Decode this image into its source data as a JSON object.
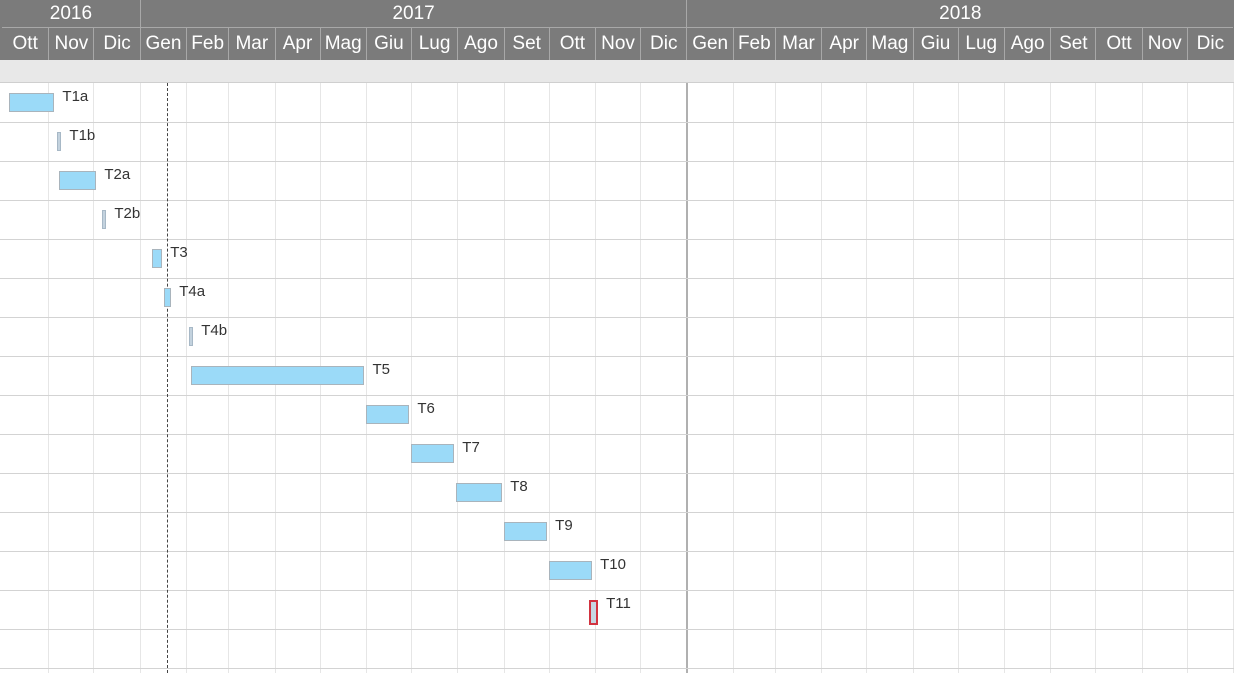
{
  "header": {
    "years": [
      "2016",
      "2017",
      "2018"
    ],
    "months": [
      "Ott",
      "Nov",
      "Dic",
      "Gen",
      "Feb",
      "Mar",
      "Apr",
      "Mag",
      "Giu",
      "Lug",
      "Ago",
      "Set",
      "Ott",
      "Nov",
      "Dic",
      "Gen",
      "Feb",
      "Mar",
      "Apr",
      "Mag",
      "Giu",
      "Lug",
      "Ago",
      "Set",
      "Ott",
      "Nov",
      "Dic"
    ]
  },
  "tasks": [
    {
      "label": "T1a",
      "start": "2016-10-06",
      "end": "2016-11-05",
      "kind": "bar"
    },
    {
      "label": "T1b",
      "start": "2016-11-07",
      "end": "2016-11-09",
      "kind": "milestone"
    },
    {
      "label": "T2a",
      "start": "2016-11-08",
      "end": "2016-12-03",
      "kind": "bar"
    },
    {
      "label": "T2b",
      "start": "2016-12-07",
      "end": "2016-12-09",
      "kind": "milestone"
    },
    {
      "label": "T3",
      "start": "2017-01-09",
      "end": "2017-01-16",
      "kind": "bar"
    },
    {
      "label": "T4a",
      "start": "2017-01-17",
      "end": "2017-01-22",
      "kind": "bar"
    },
    {
      "label": "T4b",
      "start": "2017-02-03",
      "end": "2017-02-05",
      "kind": "milestone"
    },
    {
      "label": "T5",
      "start": "2017-02-04",
      "end": "2017-05-31",
      "kind": "bar"
    },
    {
      "label": "T6",
      "start": "2017-06-01",
      "end": "2017-06-30",
      "kind": "bar"
    },
    {
      "label": "T7",
      "start": "2017-07-01",
      "end": "2017-07-30",
      "kind": "bar"
    },
    {
      "label": "T8",
      "start": "2017-07-31",
      "end": "2017-08-31",
      "kind": "bar"
    },
    {
      "label": "T9",
      "start": "2017-09-01",
      "end": "2017-09-30",
      "kind": "bar"
    },
    {
      "label": "T10",
      "start": "2017-10-01",
      "end": "2017-10-30",
      "kind": "bar"
    },
    {
      "label": "T11",
      "start": "2017-10-28",
      "end": "2017-11-03",
      "kind": "selected"
    }
  ],
  "today": "2017-01-19",
  "colors": {
    "header_bg": "#7b7b7b",
    "bar_fill": "#9bdaf8",
    "milestone_fill": "#c3d2de",
    "selected_border": "#d23340",
    "today_line": "#444444"
  }
}
